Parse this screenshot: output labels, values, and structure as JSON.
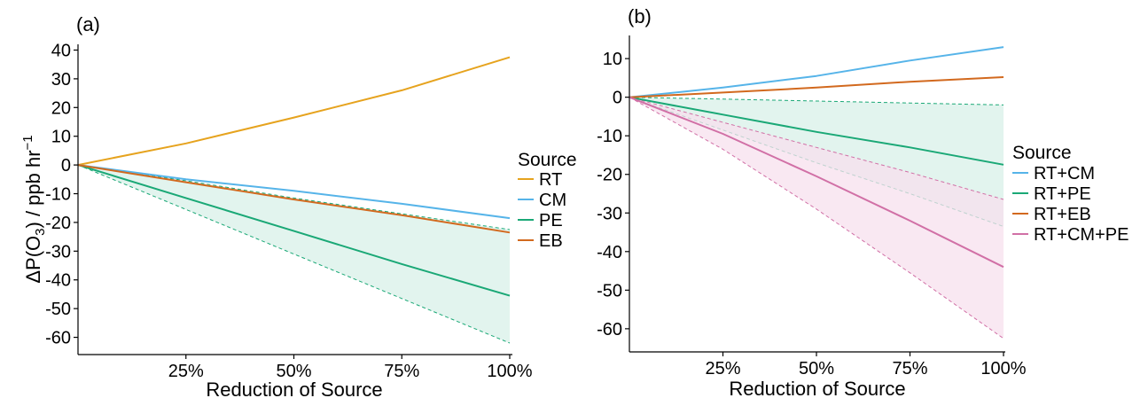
{
  "chart_data": [
    {
      "type": "line",
      "panel_label": "(a)",
      "xlabel": "Reduction of Source",
      "ylabel_parts": [
        "ΔP(O",
        "3",
        ") / ppb hr",
        "−1"
      ],
      "x_ticks": [
        25,
        50,
        75,
        100
      ],
      "x_tick_labels": [
        "25%",
        "50%",
        "75%",
        "100%"
      ],
      "xlim": [
        0,
        100
      ],
      "y_ticks": [
        40,
        30,
        20,
        10,
        0,
        -10,
        -20,
        -30,
        -40,
        -50,
        -60
      ],
      "y_tick_labels": [
        "40",
        "30",
        "20",
        "10",
        "0",
        "-10",
        "-20",
        "-30",
        "-40",
        "-50",
        "-60"
      ],
      "ylim": [
        -66,
        42
      ],
      "legend_title": "Source",
      "legend_position": "right",
      "series": [
        {
          "name": "RT",
          "color": "#E6A31E",
          "x": [
            0,
            25,
            50,
            75,
            100
          ],
          "values": [
            0,
            7.5,
            16.5,
            26,
            37.5
          ]
        },
        {
          "name": "CM",
          "color": "#56B4E9",
          "x": [
            0,
            25,
            50,
            75,
            100
          ],
          "values": [
            0,
            -5,
            -9,
            -13.5,
            -18.5
          ]
        },
        {
          "name": "PE",
          "color": "#1AA876",
          "x": [
            0,
            25,
            50,
            75,
            100
          ],
          "values": [
            0,
            -11.5,
            -23,
            -34.5,
            -45.5
          ]
        },
        {
          "name": "EB",
          "color": "#D2691E",
          "x": [
            0,
            25,
            50,
            75,
            100
          ],
          "values": [
            0,
            -6,
            -12,
            -17.5,
            -23.5
          ]
        }
      ],
      "bands": [
        {
          "color": "#1AA876",
          "fill": "#D8F0E8",
          "x": [
            0,
            25,
            50,
            75,
            100
          ],
          "upper": [
            0,
            -5.5,
            -11.5,
            -17,
            -22.5
          ],
          "lower": [
            0,
            -15.5,
            -31,
            -46.5,
            -62
          ]
        }
      ]
    },
    {
      "type": "line",
      "panel_label": "(b)",
      "xlabel": "Reduction of Source",
      "x_ticks": [
        25,
        50,
        75,
        100
      ],
      "x_tick_labels": [
        "25%",
        "50%",
        "75%",
        "100%"
      ],
      "xlim": [
        0,
        100
      ],
      "y_ticks": [
        10,
        0,
        -10,
        -20,
        -30,
        -40,
        -50,
        -60
      ],
      "y_tick_labels": [
        "10",
        "0",
        "-10",
        "-20",
        "-30",
        "-40",
        "-50",
        "-60"
      ],
      "ylim": [
        -66,
        16
      ],
      "legend_title": "Source",
      "legend_position": "right",
      "series": [
        {
          "name": "RT+CM",
          "color": "#56B4E9",
          "x": [
            0,
            25,
            50,
            75,
            100
          ],
          "values": [
            0,
            2.5,
            5.5,
            9.5,
            13
          ]
        },
        {
          "name": "RT+PE",
          "color": "#1AA876",
          "x": [
            0,
            25,
            50,
            75,
            100
          ],
          "values": [
            0,
            -4.5,
            -9,
            -13,
            -17.5
          ]
        },
        {
          "name": "RT+EB",
          "color": "#D2691E",
          "x": [
            0,
            25,
            50,
            75,
            100
          ],
          "values": [
            0,
            1.2,
            2.5,
            4,
            5.2
          ]
        },
        {
          "name": "RT+CM+PE",
          "color": "#D170A6",
          "x": [
            0,
            25,
            50,
            75,
            100
          ],
          "values": [
            0,
            -9.5,
            -20.5,
            -32,
            -44
          ]
        }
      ],
      "bands": [
        {
          "color": "#1AA876",
          "fill": "#D8F0E8",
          "x": [
            0,
            25,
            50,
            75,
            100
          ],
          "upper": [
            0,
            -0.5,
            -1,
            -1.5,
            -2
          ],
          "lower": [
            0,
            -8.5,
            -17,
            -25,
            -33.5
          ]
        },
        {
          "color": "#D170A6",
          "fill": "#F7E0EE",
          "x": [
            0,
            25,
            50,
            75,
            100
          ],
          "upper": [
            0,
            -6.5,
            -13,
            -19.5,
            -26.5
          ],
          "lower": [
            0,
            -13.5,
            -29,
            -45.5,
            -62.5
          ]
        }
      ]
    }
  ]
}
